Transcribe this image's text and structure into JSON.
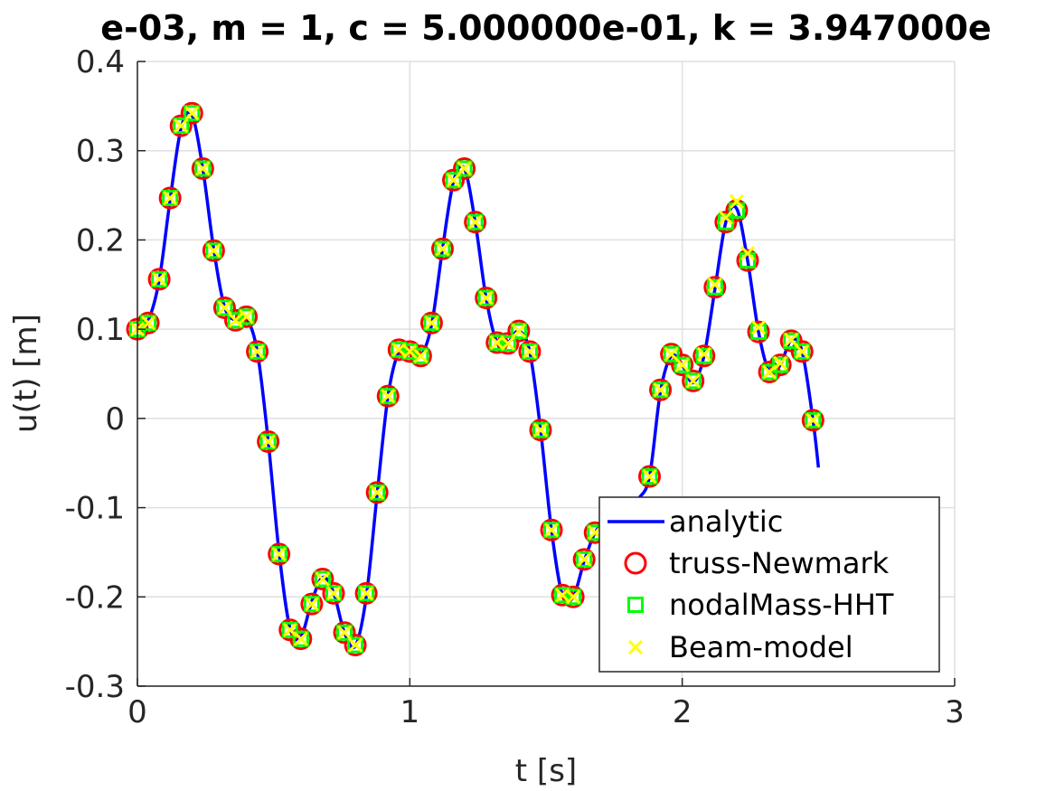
{
  "chart_data": {
    "type": "line",
    "title": "e-03, m = 1, c = 5.000000e-01, k = 3.947000e",
    "xlabel": "t [s]",
    "ylabel": "u(t) [m]",
    "xlim": [
      0,
      3
    ],
    "ylim": [
      -0.3,
      0.4
    ],
    "xticks": [
      "0",
      "1",
      "2",
      "3"
    ],
    "yticks": [
      "-0.3",
      "-0.2",
      "-0.1",
      "0",
      "0.1",
      "0.2",
      "0.3",
      "0.4"
    ],
    "grid": true,
    "legend_position": "bottom-right",
    "colors": {
      "analytic": "#0000ff",
      "truss": "#ff0000",
      "nodal": "#00ff00",
      "beam": "#ffff00"
    },
    "series": [
      {
        "name": "analytic",
        "style": "line",
        "x": [
          0.0,
          0.04,
          0.08,
          0.12,
          0.16,
          0.2,
          0.24,
          0.28,
          0.32,
          0.36,
          0.4,
          0.44,
          0.48,
          0.52,
          0.56,
          0.6,
          0.64,
          0.68,
          0.72,
          0.76,
          0.8,
          0.84,
          0.88,
          0.92,
          0.96,
          1.0,
          1.04,
          1.08,
          1.12,
          1.16,
          1.2,
          1.24,
          1.28,
          1.32,
          1.36,
          1.4,
          1.44,
          1.48,
          1.52,
          1.56,
          1.6,
          1.64,
          1.68,
          1.72,
          1.76,
          1.8,
          1.84,
          1.88,
          1.92,
          1.96,
          2.0,
          2.04,
          2.08,
          2.12,
          2.16,
          2.2,
          2.24,
          2.28,
          2.32,
          2.36,
          2.4,
          2.44,
          2.48,
          2.5
        ],
        "y": [
          0.1,
          0.11,
          0.155,
          0.245,
          0.325,
          0.34,
          0.28,
          0.19,
          0.125,
          0.11,
          0.112,
          0.075,
          -0.025,
          -0.15,
          -0.235,
          -0.245,
          -0.205,
          -0.178,
          -0.195,
          -0.24,
          -0.255,
          -0.2,
          -0.085,
          0.025,
          0.075,
          0.075,
          0.07,
          0.105,
          0.19,
          0.265,
          0.28,
          0.22,
          0.135,
          0.085,
          0.085,
          0.098,
          0.075,
          -0.013,
          -0.125,
          -0.198,
          -0.2,
          -0.16,
          -0.128,
          -0.115,
          -0.11,
          -0.105,
          -0.09,
          -0.065,
          0.03,
          0.07,
          0.06,
          0.04,
          0.07,
          0.145,
          0.22,
          0.235,
          0.177,
          0.097,
          0.052,
          0.06,
          0.088,
          0.075,
          -0.002,
          -0.055
        ]
      },
      {
        "name": "truss-Newmark",
        "style": "circle",
        "x": [
          0.0,
          0.04,
          0.08,
          0.12,
          0.16,
          0.2,
          0.24,
          0.28,
          0.32,
          0.36,
          0.4,
          0.44,
          0.48,
          0.52,
          0.56,
          0.6,
          0.64,
          0.68,
          0.72,
          0.76,
          0.8,
          0.84,
          0.88,
          0.92,
          0.96,
          1.0,
          1.04,
          1.08,
          1.12,
          1.16,
          1.2,
          1.24,
          1.28,
          1.32,
          1.36,
          1.4,
          1.44,
          1.48,
          1.52,
          1.56,
          1.6,
          1.64,
          1.68,
          1.88,
          1.92,
          1.96,
          2.0,
          2.04,
          2.08,
          2.12,
          2.16,
          2.2,
          2.24,
          2.28,
          2.32,
          2.36,
          2.4,
          2.44,
          2.48
        ],
        "y": [
          0.1,
          0.107,
          0.156,
          0.247,
          0.328,
          0.342,
          0.28,
          0.188,
          0.124,
          0.11,
          0.114,
          0.075,
          -0.026,
          -0.152,
          -0.237,
          -0.247,
          -0.208,
          -0.18,
          -0.196,
          -0.24,
          -0.254,
          -0.196,
          -0.083,
          0.025,
          0.077,
          0.075,
          0.07,
          0.107,
          0.19,
          0.267,
          0.28,
          0.22,
          0.135,
          0.085,
          0.084,
          0.098,
          0.075,
          -0.013,
          -0.125,
          -0.198,
          -0.2,
          -0.158,
          -0.128,
          -0.065,
          0.032,
          0.072,
          0.06,
          0.042,
          0.07,
          0.147,
          0.22,
          0.233,
          0.177,
          0.097,
          0.052,
          0.06,
          0.087,
          0.075,
          -0.002
        ]
      },
      {
        "name": "nodalMass-HHT",
        "style": "square",
        "x": [
          0.0,
          0.04,
          0.08,
          0.12,
          0.16,
          0.2,
          0.24,
          0.28,
          0.32,
          0.36,
          0.4,
          0.44,
          0.48,
          0.52,
          0.56,
          0.6,
          0.64,
          0.68,
          0.72,
          0.76,
          0.8,
          0.84,
          0.88,
          0.92,
          0.96,
          1.0,
          1.04,
          1.08,
          1.12,
          1.16,
          1.2,
          1.24,
          1.28,
          1.32,
          1.36,
          1.4,
          1.44,
          1.48,
          1.52,
          1.56,
          1.6,
          1.64,
          1.68,
          1.88,
          1.92,
          1.96,
          2.0,
          2.04,
          2.08,
          2.12,
          2.16,
          2.2,
          2.24,
          2.28,
          2.32,
          2.36,
          2.4,
          2.44,
          2.48
        ],
        "y": [
          0.1,
          0.107,
          0.156,
          0.247,
          0.328,
          0.342,
          0.28,
          0.188,
          0.124,
          0.11,
          0.114,
          0.075,
          -0.026,
          -0.152,
          -0.237,
          -0.247,
          -0.208,
          -0.18,
          -0.196,
          -0.24,
          -0.254,
          -0.196,
          -0.083,
          0.025,
          0.077,
          0.075,
          0.07,
          0.107,
          0.19,
          0.267,
          0.28,
          0.22,
          0.135,
          0.085,
          0.084,
          0.098,
          0.075,
          -0.013,
          -0.125,
          -0.198,
          -0.2,
          -0.158,
          -0.128,
          -0.065,
          0.032,
          0.072,
          0.06,
          0.042,
          0.07,
          0.147,
          0.22,
          0.233,
          0.177,
          0.097,
          0.052,
          0.06,
          0.087,
          0.075,
          -0.002
        ]
      },
      {
        "name": "Beam-model",
        "style": "x",
        "x": [
          0.0,
          0.04,
          0.08,
          0.12,
          0.16,
          0.2,
          0.24,
          0.28,
          0.32,
          0.36,
          0.4,
          0.44,
          0.48,
          0.52,
          0.56,
          0.6,
          0.64,
          0.68,
          0.72,
          0.76,
          0.8,
          0.84,
          0.88,
          0.92,
          0.96,
          1.0,
          1.04,
          1.08,
          1.12,
          1.16,
          1.2,
          1.24,
          1.28,
          1.32,
          1.36,
          1.4,
          1.44,
          1.48,
          1.52,
          1.56,
          1.6,
          1.64,
          1.68,
          1.88,
          1.92,
          1.96,
          2.0,
          2.04,
          2.08,
          2.12,
          2.16,
          2.2,
          2.24,
          2.28,
          2.32,
          2.36,
          2.4,
          2.44,
          2.48
        ],
        "y": [
          0.1,
          0.107,
          0.156,
          0.247,
          0.328,
          0.342,
          0.28,
          0.188,
          0.124,
          0.11,
          0.114,
          0.075,
          -0.026,
          -0.152,
          -0.237,
          -0.247,
          -0.208,
          -0.18,
          -0.196,
          -0.24,
          -0.254,
          -0.196,
          -0.083,
          0.025,
          0.077,
          0.075,
          0.07,
          0.107,
          0.19,
          0.267,
          0.28,
          0.22,
          0.135,
          0.085,
          0.084,
          0.098,
          0.075,
          -0.013,
          -0.125,
          -0.198,
          -0.2,
          -0.158,
          -0.128,
          -0.065,
          0.032,
          0.072,
          0.06,
          0.042,
          0.072,
          0.15,
          0.225,
          0.243,
          0.185,
          0.102,
          0.052,
          0.062,
          0.088,
          0.075,
          -0.002
        ]
      }
    ]
  }
}
